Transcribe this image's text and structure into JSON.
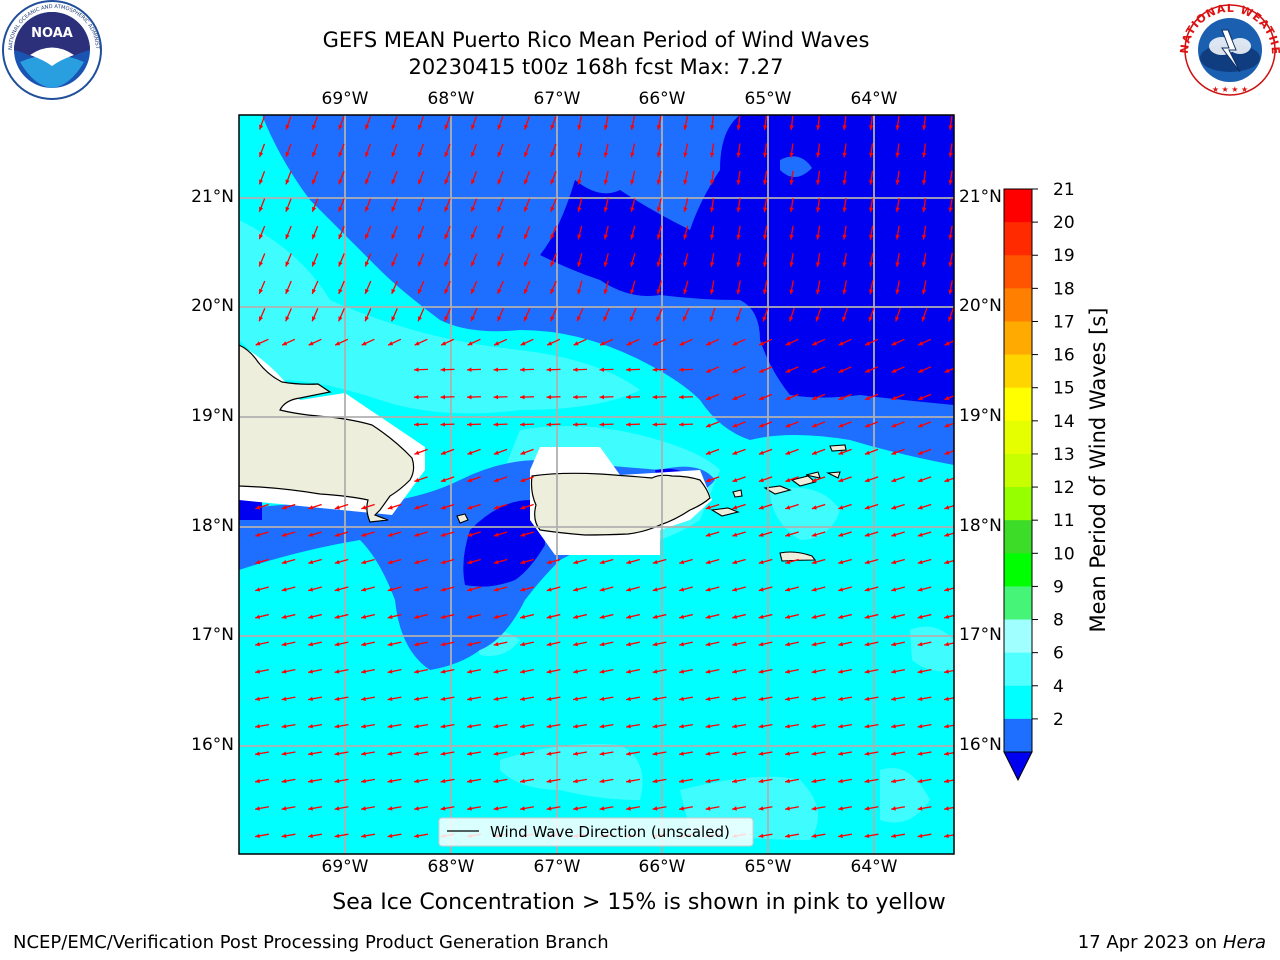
{
  "header": {
    "title_line1": "GEFS MEAN Puerto Rico Mean Period of Wind Waves",
    "title_line2": "20230415 t00z 168h fcst   Max: 7.27",
    "noaa_logo_text": "NOAA",
    "noaa_ring_text": "NATIONAL OCEANIC AND ATMOSPHERIC ADMINISTRATION · U.S. DEPARTMENT OF COMMERCE",
    "nws_ring_text": "NATIONAL WEATHER SERVICE"
  },
  "map": {
    "lon_labels": [
      "69°W",
      "68°W",
      "67°W",
      "66°W",
      "65°W",
      "64°W"
    ],
    "lat_labels": [
      "21°N",
      "20°N",
      "19°N",
      "18°N",
      "17°N",
      "16°N"
    ],
    "legend_label": "Wind Wave Direction (unscaled)",
    "colors": {
      "land": "#eeeedd",
      "arrow": "#ff0000",
      "grid": "#b0b0b0",
      "band_2_4": "#1e6fff",
      "band_4_6": "#00ffff",
      "band_6_8": "#3ffcff",
      "band_below_2": "#0000f0"
    }
  },
  "colorbar": {
    "label": "Mean Period of Wind Waves [s]",
    "ticks": [
      "21",
      "20",
      "19",
      "18",
      "17",
      "16",
      "15",
      "14",
      "13",
      "12",
      "11",
      "10",
      "9",
      "8",
      "6",
      "4",
      "2"
    ],
    "colors": [
      "#ff0000",
      "#ff2a00",
      "#ff5500",
      "#ff8000",
      "#ffaa00",
      "#ffd500",
      "#ffff00",
      "#e6ff00",
      "#c8ff00",
      "#96ff00",
      "#3cdc28",
      "#00ff00",
      "#46f578",
      "#a0ffff",
      "#50ffff",
      "#00ffff",
      "#1e6fff"
    ],
    "under_color": "#0000f0"
  },
  "footer": {
    "sea_ice_note": "Sea Ice Concentration > 15% is shown in pink to yellow",
    "credit": "NCEP/EMC/Verification Post Processing Product Generation Branch",
    "date": "17 Apr 2023 on ",
    "machine": "Hera"
  }
}
